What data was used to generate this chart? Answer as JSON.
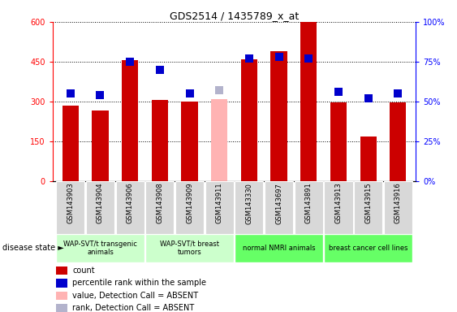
{
  "title": "GDS2514 / 1435789_x_at",
  "samples": [
    "GSM143903",
    "GSM143904",
    "GSM143906",
    "GSM143908",
    "GSM143909",
    "GSM143911",
    "GSM143330",
    "GSM143697",
    "GSM143891",
    "GSM143913",
    "GSM143915",
    "GSM143916"
  ],
  "count_values": [
    285,
    265,
    455,
    305,
    298,
    null,
    460,
    488,
    600,
    297,
    168,
    296
  ],
  "absent_value": 310,
  "absent_index": 5,
  "rank_values": [
    55,
    54,
    75,
    70,
    55,
    null,
    77,
    78,
    77,
    56,
    52,
    55
  ],
  "absent_rank": 57,
  "absent_rank_index": 5,
  "bar_color": "#cc0000",
  "absent_bar_color": "#ffb3b3",
  "dot_color": "#0000cc",
  "absent_dot_color": "#b3b3cc",
  "ylim_left": [
    0,
    600
  ],
  "ylim_right": [
    0,
    100
  ],
  "yticks_left": [
    0,
    150,
    300,
    450,
    600
  ],
  "yticks_right": [
    0,
    25,
    50,
    75,
    100
  ],
  "ytick_labels_left": [
    "0",
    "150",
    "300",
    "450",
    "600"
  ],
  "ytick_labels_right": [
    "0%",
    "25%",
    "50%",
    "75%",
    "100%"
  ],
  "groups": [
    {
      "label": "WAP-SVT/t transgenic\nanimals",
      "start": 0,
      "end": 3,
      "color": "#ccffcc"
    },
    {
      "label": "WAP-SVT/t breast\ntumors",
      "start": 3,
      "end": 6,
      "color": "#ccffcc"
    },
    {
      "label": "normal NMRI animals",
      "start": 6,
      "end": 9,
      "color": "#66ff66"
    },
    {
      "label": "breast cancer cell lines",
      "start": 9,
      "end": 12,
      "color": "#66ff66"
    }
  ],
  "legend_items": [
    {
      "label": "count",
      "color": "#cc0000",
      "type": "square"
    },
    {
      "label": "percentile rank within the sample",
      "color": "#0000cc",
      "type": "square"
    },
    {
      "label": "value, Detection Call = ABSENT",
      "color": "#ffb3b3",
      "type": "square"
    },
    {
      "label": "rank, Detection Call = ABSENT",
      "color": "#b3b3cc",
      "type": "square"
    }
  ],
  "bar_width": 0.55,
  "dot_size": 50,
  "label_fontsize": 6,
  "tick_fontsize": 7
}
